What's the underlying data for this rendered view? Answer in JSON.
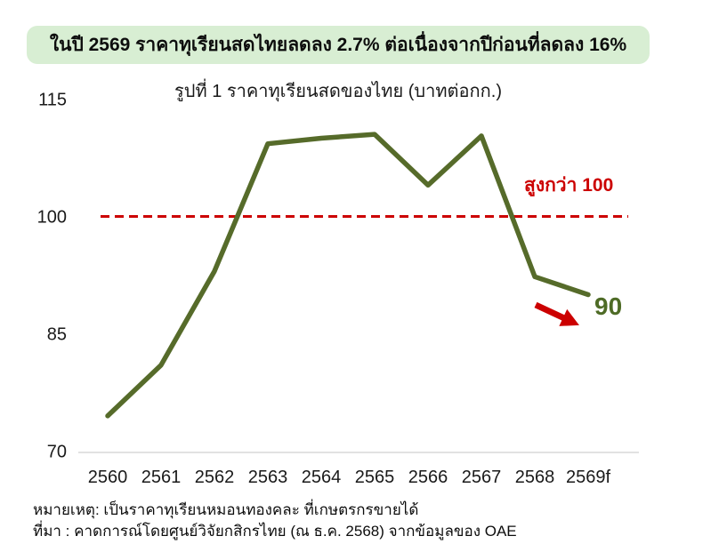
{
  "banner": {
    "text": "ในปี 2569 ราคาทุเรียนสดไทยลดลง 2.7% ต่อเนื่องจากปีก่อนที่ลดลง 16%",
    "bg_color": "#d8eed3"
  },
  "chart_data": {
    "type": "line",
    "title": "รูปที่ 1 ราคาทุเรียนสดของไทย (บาทต่อกก.)",
    "categories": [
      "2560",
      "2561",
      "2562",
      "2563",
      "2564",
      "2565",
      "2566",
      "2567",
      "2568",
      "2569f"
    ],
    "series": [
      {
        "name": "ราคาทุเรียนสดของไทย",
        "values": [
          74.5,
          81,
          93,
          109.3,
          110,
          110.5,
          104,
          110.3,
          92.3,
          90
        ]
      }
    ],
    "y_ticks": [
      115,
      100,
      85,
      70
    ],
    "ylim": [
      70,
      115
    ],
    "grid": false,
    "legend": "none",
    "line_color": "#566b2a",
    "reference_line": {
      "value": 100,
      "label": "สูงกว่า 100",
      "color": "#cc0000",
      "style": "dashed"
    },
    "end_label": {
      "text": "90",
      "color": "#4e6b26"
    },
    "annotations": [
      {
        "type": "arrow",
        "direction": "down-right",
        "color": "#cc0000",
        "meaning": "price declining"
      }
    ]
  },
  "footer": {
    "note": "หมายเหตุ: เป็นราคาทุเรียนหมอนทองคละ ที่เกษตรกรขายได้",
    "source": "ที่มา : คาดการณ์โดยศูนย์วิจัยกสิกรไทย (ณ ธ.ค. 2568) จากข้อมูลของ OAE"
  }
}
